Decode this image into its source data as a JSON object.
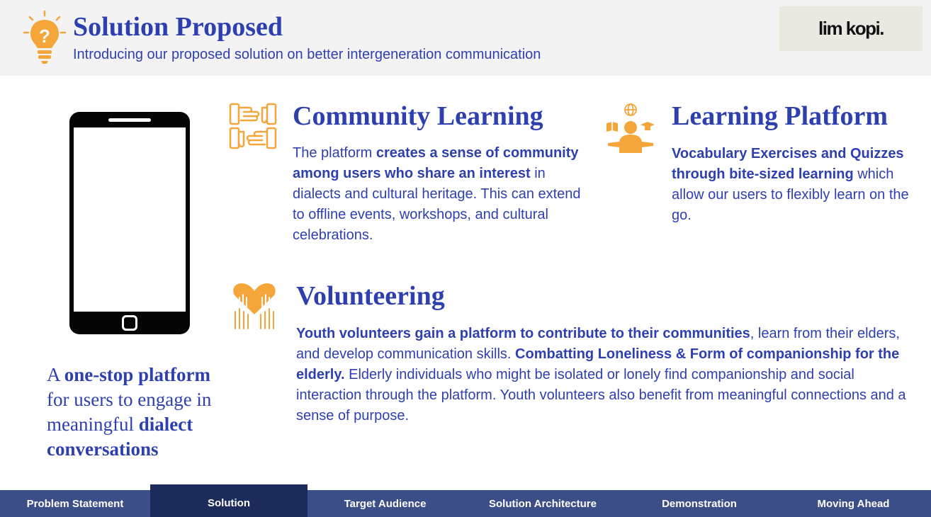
{
  "header": {
    "title": "Solution Proposed",
    "subtitle": "Introducing our proposed solution on better intergeneration communication",
    "bulb_icon": "lightbulb-question-icon",
    "logo_text": "lim kopi."
  },
  "phone_icon": "smartphone-icon",
  "tagline": {
    "part1": "A ",
    "bold1": "one-stop platform",
    "part2": " for users to engage in meaningful ",
    "bold2": "dialect conversations"
  },
  "community": {
    "icon": "joined-hands-icon",
    "title": "Community Learning",
    "t1": "The platform ",
    "b1": "creates a sense of community among users who share an interest",
    "t2": " in dialects and cultural heritage. This can extend to offline events, workshops, and cultural celebrations."
  },
  "learning": {
    "icon": "student-learning-icon",
    "title": "Learning Platform",
    "b1": "Vocabulary Exercises and Quizzes through bite-sized learning",
    "t1": " which allow our users to flexibly learn on the go."
  },
  "volunteering": {
    "icon": "raised-hands-heart-icon",
    "title": "Volunteering",
    "b1": "Youth volunteers gain a platform to contribute to their communities",
    "t1": ", learn from their elders, and develop communication skills. ",
    "b2": "Combatting Loneliness & Form of companionship for the elderly.",
    "t2": " Elderly individuals who might be isolated or lonely find companionship and social interaction through the platform. Youth volunteers also benefit from meaningful connections and a sense of purpose."
  },
  "nav": {
    "items": [
      "Problem Statement",
      "Solution",
      "Target Audience",
      "Solution Architecture",
      "Demonstration",
      "Moving Ahead"
    ],
    "active": "Solution"
  },
  "colors": {
    "accent": "#2e3fb0",
    "orange": "#f4a63a",
    "nav_bg": "#3b4e87",
    "nav_active": "#1c2b5a"
  }
}
